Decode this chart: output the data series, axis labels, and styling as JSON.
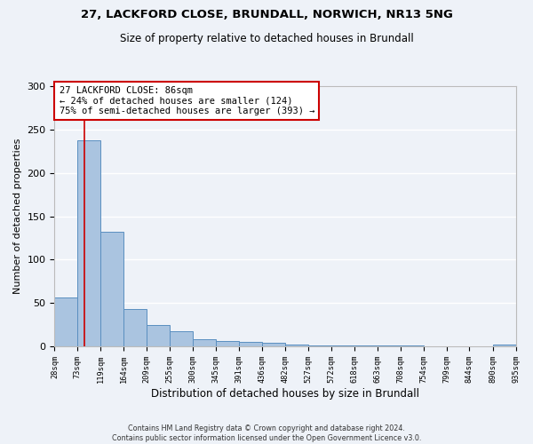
{
  "title1": "27, LACKFORD CLOSE, BRUNDALL, NORWICH, NR13 5NG",
  "title2": "Size of property relative to detached houses in Brundall",
  "xlabel": "Distribution of detached houses by size in Brundall",
  "ylabel": "Number of detached properties",
  "annotation_line1": "27 LACKFORD CLOSE: 86sqm",
  "annotation_line2": "← 24% of detached houses are smaller (124)",
  "annotation_line3": "75% of semi-detached houses are larger (393) →",
  "footer1": "Contains HM Land Registry data © Crown copyright and database right 2024.",
  "footer2": "Contains public sector information licensed under the Open Government Licence v3.0.",
  "bar_edges": [
    28,
    73,
    119,
    164,
    209,
    255,
    300,
    345,
    391,
    436,
    482,
    527,
    572,
    618,
    663,
    708,
    754,
    799,
    844,
    890,
    935
  ],
  "bar_values": [
    57,
    238,
    132,
    43,
    25,
    18,
    8,
    6,
    5,
    4,
    2,
    1,
    1,
    1,
    1,
    1,
    0,
    0,
    0,
    2
  ],
  "bar_color": "#aac4e0",
  "bar_edge_color": "#5a8fc0",
  "property_line_x": 86,
  "annotation_box_color": "#ffffff",
  "annotation_box_edge": "#cc0000",
  "property_line_color": "#cc0000",
  "ylim": [
    0,
    300
  ],
  "background_color": "#eef2f8",
  "grid_color": "#ffffff"
}
